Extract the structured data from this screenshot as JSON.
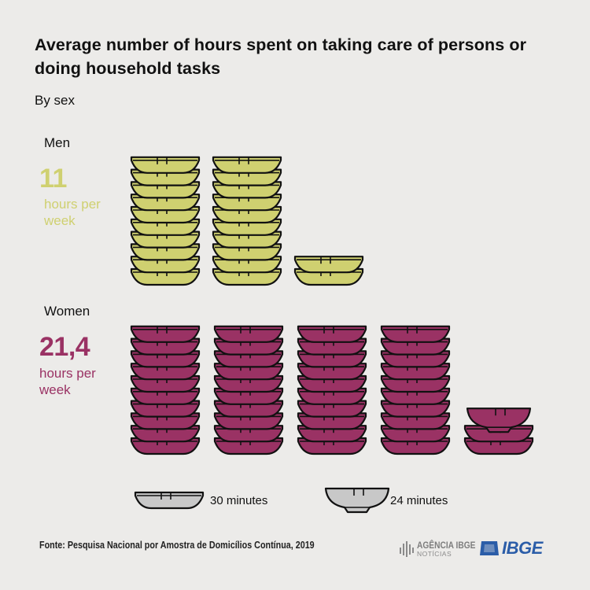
{
  "title": "Average number of hours spent on taking care of persons or doing household tasks",
  "subtitle": "By sex",
  "chart_data": {
    "type": "pictogram",
    "title": "Average number of hours spent on taking care of persons or doing household tasks",
    "subtitle": "By sex",
    "unit_icons": [
      {
        "icon": "flat-bowl-icon",
        "label": "30 minutes",
        "minutes": 30
      },
      {
        "icon": "deep-bowl-icon",
        "label": "24 minutes",
        "minutes": 24
      }
    ],
    "series": [
      {
        "name": "Men",
        "value_label": "11",
        "value": 11,
        "unit_label": "hours per week",
        "color": "#cfd070",
        "stacks": [
          {
            "flat_bowls": 10,
            "deep_bowls": 0
          },
          {
            "flat_bowls": 10,
            "deep_bowls": 0
          },
          {
            "flat_bowls": 2,
            "deep_bowls": 0
          }
        ]
      },
      {
        "name": "Women",
        "value_label": "21,4",
        "value": 21.4,
        "unit_label": "hours per week",
        "color": "#9a3264",
        "stacks": [
          {
            "flat_bowls": 10,
            "deep_bowls": 0
          },
          {
            "flat_bowls": 10,
            "deep_bowls": 0
          },
          {
            "flat_bowls": 10,
            "deep_bowls": 0
          },
          {
            "flat_bowls": 10,
            "deep_bowls": 0
          },
          {
            "flat_bowls": 2,
            "deep_bowls": 1
          }
        ]
      }
    ],
    "legend_color": "#c8c8c8"
  },
  "source": "Fonte: Pesquisa Nacional por Amostra de Domicílios Contínua, 2019",
  "logos": {
    "agencia": "AGÊNCIA IBGE",
    "agencia_sub": "NOTÍCIAS",
    "ibge": "IBGE"
  }
}
